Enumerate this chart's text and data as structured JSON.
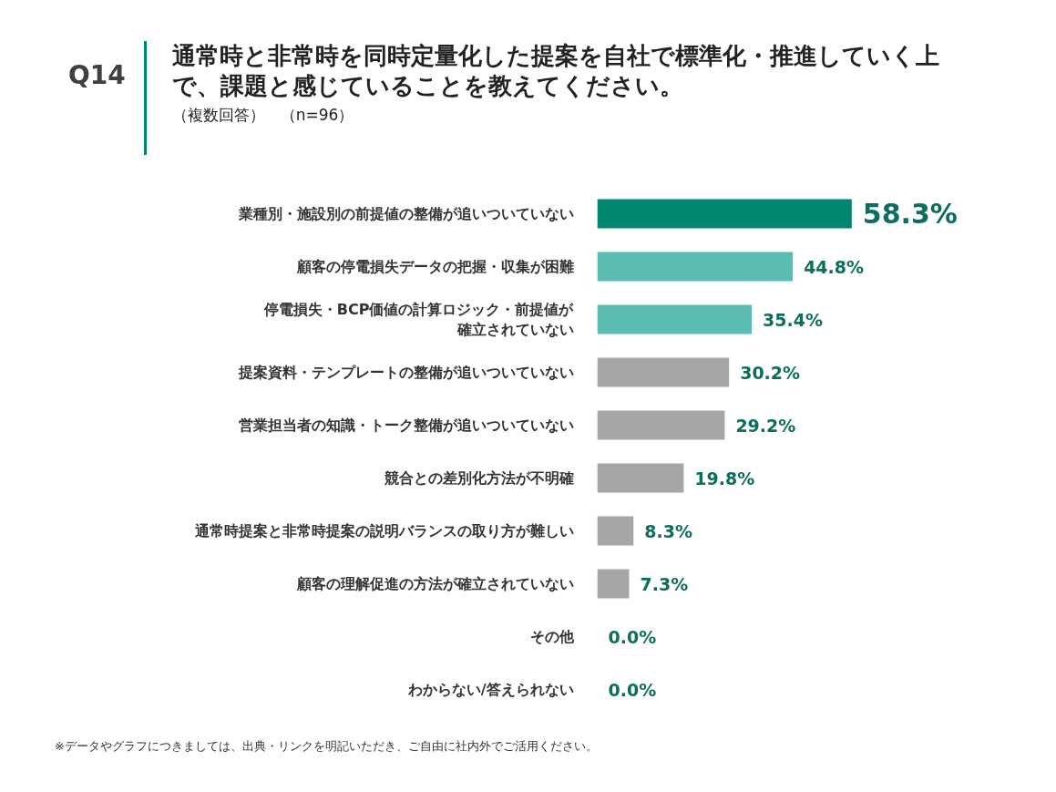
{
  "chart_data": {
    "type": "bar",
    "orientation": "horizontal",
    "title": "通常時と非常時を同時定量化した提案を自社で標準化・推進していく上で、課題と感じていることを教えてください。",
    "subtitle": "（複数回答）　（n=96）",
    "annotations": [
      "Q14",
      "※データやグラフにつきましては、出典・リンクを明記いただき、ご自由に社内外でご活用ください。"
    ],
    "categories": [
      "業種別・施設別の前提値の整備が追いついていない",
      "顧客の停電損失データの把握・収集が困難",
      "停電損失・BCP価値の計算ロジック・前提値が確立されていない",
      "提案資料・テンプレートの整備が追いついていない",
      "営業担当者の知識・トーク整備が追いついていない",
      "競合との差別化方法が不明確",
      "通常時提案と非常時提案の説明バランスの取り方が難しい",
      "顧客の理解促進の方法が確立されていない",
      "その他",
      "わからない/答えられない"
    ],
    "values": [
      58.3,
      44.8,
      35.4,
      30.2,
      29.2,
      19.8,
      8.3,
      7.3,
      0.0,
      0.0
    ],
    "value_labels": [
      "58.3%",
      "44.8%",
      "35.4%",
      "30.2%",
      "29.2%",
      "19.8%",
      "8.3%",
      "7.3%",
      "0.0%",
      "0.0%"
    ],
    "colors": [
      "#00856f",
      "#5bbcb2",
      "#5bbcb2",
      "#a6a6a6",
      "#a6a6a6",
      "#a6a6a6",
      "#a6a6a6",
      "#a6a6a6",
      "#a6a6a6",
      "#a6a6a6"
    ],
    "tick_labels": "y"
  }
}
